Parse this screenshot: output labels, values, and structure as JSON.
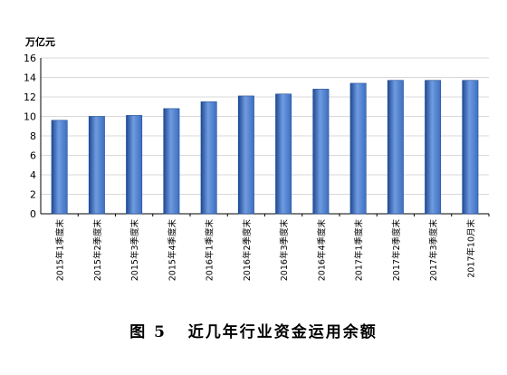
{
  "figure": {
    "caption_number": "图 5",
    "caption_title": "近几年行业资金运用余额"
  },
  "chart_data": {
    "type": "bar",
    "ylabel": "万亿元",
    "ylim": [
      0,
      16
    ],
    "yticks": [
      0,
      2,
      4,
      6,
      8,
      10,
      12,
      14,
      16
    ],
    "grid": true,
    "colors": {
      "bar": "#3C6FC2",
      "bar_dark": "#1F4A93",
      "bar_light": "#6F9BE0",
      "grid": "#D9D9D9"
    },
    "categories": [
      "2015年1季度末",
      "2015年2季度末",
      "2015年3季度末",
      "2015年4季度末",
      "2016年1季度末",
      "2016年2季度末",
      "2016年3季度末",
      "2016年4季度末",
      "2017年1季度末",
      "2017年2季度末",
      "2017年3季度末",
      "2017年10月末"
    ],
    "values": [
      9.6,
      10.0,
      10.1,
      10.8,
      11.5,
      12.1,
      12.3,
      12.8,
      13.4,
      13.7,
      13.7,
      13.7
    ]
  }
}
